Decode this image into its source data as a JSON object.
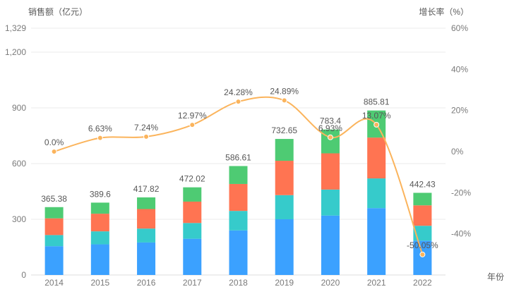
{
  "chart_data": {
    "type": "stacked-bar+line",
    "categories": [
      "2014",
      "2015",
      "2016",
      "2017",
      "2018",
      "2019",
      "2020",
      "2021",
      "2022"
    ],
    "series": [
      {
        "color": "#3BA1FF",
        "values": [
          155,
          165,
          175,
          195,
          240,
          300,
          320,
          360,
          185
        ]
      },
      {
        "color": "#36CBCB",
        "values": [
          60,
          70,
          75,
          85,
          105,
          130,
          140,
          160,
          80
        ]
      },
      {
        "color": "#FF7452",
        "values": [
          90,
          95,
          105,
          115,
          145,
          185,
          195,
          220,
          110
        ]
      },
      {
        "color": "#4ECB73",
        "values": [
          60.38,
          59.6,
          62.82,
          77.02,
          96.61,
          117.65,
          128.4,
          145.81,
          67.43
        ]
      }
    ],
    "totals": [
      365.38,
      389.6,
      417.82,
      472.02,
      586.61,
      732.65,
      783.4,
      885.81,
      442.43
    ],
    "total_labels": [
      "365.38",
      "389.6",
      "417.82",
      "472.02",
      "586.61",
      "732.65",
      "783.4",
      "885.81",
      "442.43"
    ],
    "line": {
      "color": "#FBB45C",
      "values": [
        0.0,
        6.63,
        7.24,
        12.97,
        24.28,
        24.89,
        6.93,
        13.07,
        -50.05
      ],
      "labels": [
        "0.0%",
        "6.63%",
        "7.24%",
        "12.97%",
        "24.28%",
        "24.89%",
        "6.93%",
        "13.07%",
        "-50.05%"
      ]
    },
    "left_axis": {
      "title": "销售额（亿元）",
      "tick_labels": [
        "0",
        "300",
        "600",
        "900",
        "1,200",
        "1,329"
      ],
      "tick_values": [
        0,
        300,
        600,
        900,
        1200,
        1329
      ],
      "min": 0,
      "max": 1329
    },
    "right_axis": {
      "title": "增长率（%）",
      "tick_labels": [
        "60%",
        "40%",
        "20%",
        "0%",
        "-20%",
        "-40%"
      ],
      "tick_values": [
        60,
        40,
        20,
        0,
        -20,
        -40
      ],
      "min": -60,
      "max": 60
    },
    "x_axis": {
      "title": "年份"
    },
    "grid": true,
    "legend": "none"
  }
}
